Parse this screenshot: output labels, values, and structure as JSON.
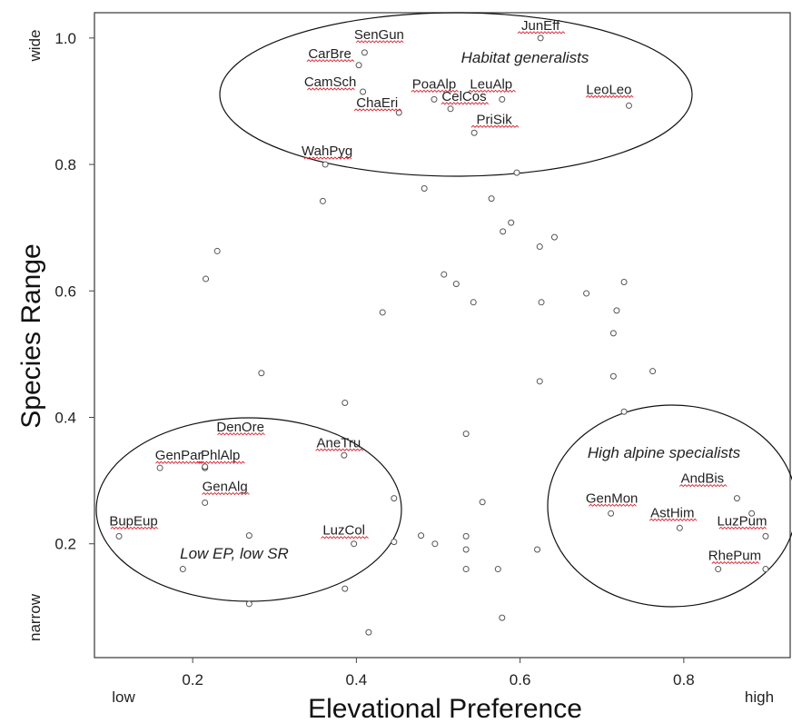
{
  "chart_data": {
    "type": "scatter",
    "xlabel": "Elevational Preference",
    "ylabel": "Species Range",
    "xlim": [
      0.08,
      0.93
    ],
    "ylim": [
      0.02,
      1.04
    ],
    "x_ticks": [
      "0.2",
      "0.4",
      "0.6",
      "0.8"
    ],
    "y_ticks": [
      "0.2",
      "0.4",
      "0.6",
      "0.8",
      "1.0"
    ],
    "x_extremes": {
      "low": "low",
      "high": "high"
    },
    "y_extremes": {
      "low": "narrow",
      "high": "wide"
    },
    "grid": false,
    "points": [
      {
        "x": 0.625,
        "y": 1.0,
        "label": "JunEff"
      },
      {
        "x": 0.41,
        "y": 0.977,
        "label": "SenGun"
      },
      {
        "x": 0.403,
        "y": 0.957,
        "label": "CarBre"
      },
      {
        "x": 0.408,
        "y": 0.915,
        "label": "CamSch"
      },
      {
        "x": 0.495,
        "y": 0.903,
        "label": "PoaAlp"
      },
      {
        "x": 0.578,
        "y": 0.903,
        "label": "LeuAlp"
      },
      {
        "x": 0.733,
        "y": 0.893,
        "label": "LeoLeo"
      },
      {
        "x": 0.515,
        "y": 0.888,
        "label": "CelCos"
      },
      {
        "x": 0.452,
        "y": 0.882,
        "label": "ChaEri"
      },
      {
        "x": 0.544,
        "y": 0.85,
        "label": "PriSik"
      },
      {
        "x": 0.362,
        "y": 0.8,
        "label": "WahPyg"
      },
      {
        "x": 0.215,
        "y": 0.32,
        "label": "GenPar"
      },
      {
        "x": 0.215,
        "y": 0.32,
        "label": "PhlAlp"
      },
      {
        "x": 0.215,
        "y": 0.322,
        "label": "DenOre"
      },
      {
        "x": 0.215,
        "y": 0.265,
        "label": "GenAlg"
      },
      {
        "x": 0.11,
        "y": 0.212,
        "label": "BupEup"
      },
      {
        "x": 0.385,
        "y": 0.34,
        "label": "AneTru"
      },
      {
        "x": 0.397,
        "y": 0.2,
        "label": "LuzCol"
      },
      {
        "x": 0.711,
        "y": 0.248,
        "label": "GenMon"
      },
      {
        "x": 0.865,
        "y": 0.272,
        "label": "AndBis"
      },
      {
        "x": 0.795,
        "y": 0.225,
        "label": "AstHim"
      },
      {
        "x": 0.9,
        "y": 0.212,
        "label": "LuzPum"
      },
      {
        "x": 0.9,
        "y": 0.16,
        "label": "RhePum"
      },
      {
        "x": 0.16,
        "y": 0.32
      },
      {
        "x": 0.883,
        "y": 0.248
      },
      {
        "x": 0.596,
        "y": 0.787
      },
      {
        "x": 0.483,
        "y": 0.762
      },
      {
        "x": 0.359,
        "y": 0.742
      },
      {
        "x": 0.565,
        "y": 0.746
      },
      {
        "x": 0.589,
        "y": 0.708
      },
      {
        "x": 0.579,
        "y": 0.694
      },
      {
        "x": 0.642,
        "y": 0.685
      },
      {
        "x": 0.624,
        "y": 0.67
      },
      {
        "x": 0.23,
        "y": 0.663
      },
      {
        "x": 0.216,
        "y": 0.619
      },
      {
        "x": 0.507,
        "y": 0.626
      },
      {
        "x": 0.522,
        "y": 0.611
      },
      {
        "x": 0.727,
        "y": 0.614
      },
      {
        "x": 0.681,
        "y": 0.596
      },
      {
        "x": 0.543,
        "y": 0.582
      },
      {
        "x": 0.626,
        "y": 0.582
      },
      {
        "x": 0.718,
        "y": 0.569
      },
      {
        "x": 0.432,
        "y": 0.566
      },
      {
        "x": 0.714,
        "y": 0.533
      },
      {
        "x": 0.762,
        "y": 0.473
      },
      {
        "x": 0.284,
        "y": 0.47
      },
      {
        "x": 0.714,
        "y": 0.465
      },
      {
        "x": 0.624,
        "y": 0.457
      },
      {
        "x": 0.386,
        "y": 0.423
      },
      {
        "x": 0.727,
        "y": 0.409
      },
      {
        "x": 0.534,
        "y": 0.374
      },
      {
        "x": 0.446,
        "y": 0.272
      },
      {
        "x": 0.554,
        "y": 0.266
      },
      {
        "x": 0.269,
        "y": 0.213
      },
      {
        "x": 0.446,
        "y": 0.203
      },
      {
        "x": 0.479,
        "y": 0.213
      },
      {
        "x": 0.496,
        "y": 0.2
      },
      {
        "x": 0.534,
        "y": 0.212
      },
      {
        "x": 0.534,
        "y": 0.191
      },
      {
        "x": 0.621,
        "y": 0.191
      },
      {
        "x": 0.188,
        "y": 0.16
      },
      {
        "x": 0.534,
        "y": 0.16
      },
      {
        "x": 0.573,
        "y": 0.16
      },
      {
        "x": 0.842,
        "y": 0.16
      },
      {
        "x": 0.386,
        "y": 0.129
      },
      {
        "x": 0.269,
        "y": 0.105
      },
      {
        "x": 0.578,
        "y": 0.083
      },
      {
        "x": 0.415,
        "y": 0.06
      }
    ],
    "annotations": [
      {
        "text": "Habitat generalists"
      },
      {
        "text": "Low EP, low SR"
      },
      {
        "text": "High alpine specialists"
      }
    ]
  }
}
